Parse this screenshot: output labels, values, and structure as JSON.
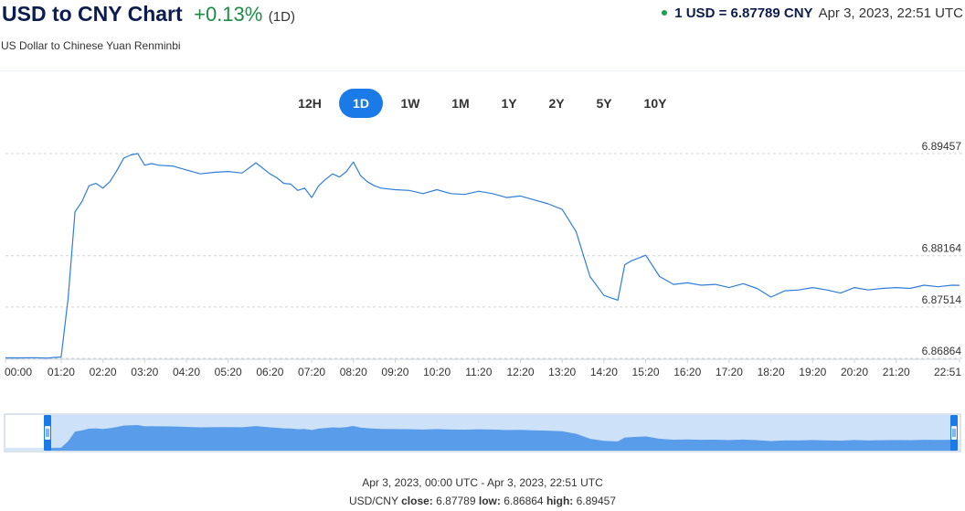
{
  "header": {
    "title": "USD to CNY Chart",
    "change": "+0.13%",
    "period": "(1D)",
    "subtitle": "US Dollar to Chinese Yuan Renminbi",
    "rate_label": "1 USD = 6.87789 CNY",
    "rate_time": "Apr 3, 2023, 22:51 UTC"
  },
  "tabs": [
    {
      "label": "12H",
      "active": false
    },
    {
      "label": "1D",
      "active": true
    },
    {
      "label": "1W",
      "active": false
    },
    {
      "label": "1M",
      "active": false
    },
    {
      "label": "1Y",
      "active": false
    },
    {
      "label": "2Y",
      "active": false
    },
    {
      "label": "5Y",
      "active": false
    },
    {
      "label": "10Y",
      "active": false
    }
  ],
  "colors": {
    "line": "#2f7ed8",
    "accent": "#1a7ae8",
    "positive": "#1a8d45",
    "navigator_fill": "#4f96e8",
    "navigator_mask": "#cde2f9",
    "handle": "#1a7ae8"
  },
  "footer": {
    "range": "Apr 3, 2023, 00:00 UTC - Apr 3, 2023, 22:51 UTC",
    "pair": "USD/CNY",
    "close_label": "close:",
    "close": "6.87789",
    "low_label": "low:",
    "low": "6.86864",
    "high_label": "high:",
    "high": "6.89457"
  },
  "chart_data": {
    "type": "line",
    "title": "",
    "xlabel": "",
    "ylabel": "",
    "series": [
      {
        "x": [
          "00:00",
          "00:20",
          "00:40",
          "01:00",
          "01:10",
          "01:20",
          "01:30",
          "01:40",
          "01:50",
          "02:00",
          "02:10",
          "02:20",
          "02:30",
          "02:40",
          "02:50",
          "03:00",
          "03:10",
          "03:20",
          "03:30",
          "03:40",
          "04:00",
          "04:20",
          "04:40",
          "05:00",
          "05:20",
          "05:40",
          "06:00",
          "06:20",
          "06:30",
          "06:40",
          "06:50",
          "07:00",
          "07:10",
          "07:20",
          "07:30",
          "07:40",
          "07:50",
          "08:00",
          "08:10",
          "08:20",
          "08:30",
          "08:40",
          "08:50",
          "09:00",
          "09:20",
          "09:40",
          "10:00",
          "10:20",
          "10:40",
          "11:00",
          "11:20",
          "11:40",
          "12:00",
          "12:20",
          "12:40",
          "13:00",
          "13:20",
          "13:40",
          "14:00",
          "14:20",
          "14:40",
          "14:50",
          "15:00",
          "15:20",
          "15:40",
          "16:00",
          "16:20",
          "16:40",
          "17:00",
          "17:20",
          "17:40",
          "18:00",
          "18:20",
          "18:40",
          "19:00",
          "19:20",
          "19:40",
          "20:00",
          "20:20",
          "20:40",
          "21:00",
          "21:20",
          "21:40",
          "22:00",
          "22:20",
          "22:40",
          "22:51"
        ],
        "y": [
          6.8687,
          6.8687,
          6.86872,
          6.86868,
          6.86875,
          6.8688,
          6.8762,
          6.8872,
          6.8885,
          6.8905,
          6.8908,
          6.8902,
          6.891,
          6.8924,
          6.894,
          6.8944,
          6.89457,
          6.8931,
          6.8933,
          6.8931,
          6.893,
          6.8925,
          6.892,
          6.8922,
          6.8923,
          6.8921,
          6.8934,
          6.892,
          6.8915,
          6.8908,
          6.8907,
          6.8899,
          6.8902,
          6.889,
          6.8905,
          6.8913,
          6.892,
          6.8916,
          6.8923,
          6.8935,
          6.8918,
          6.891,
          6.8905,
          6.8902,
          6.89,
          6.8899,
          6.8895,
          6.89,
          6.8895,
          6.8894,
          6.8898,
          6.8895,
          6.889,
          6.8892,
          6.8887,
          6.8882,
          6.8875,
          6.8847,
          6.879,
          6.8766,
          6.876,
          6.8805,
          6.881,
          6.8817,
          6.879,
          6.878,
          6.8782,
          6.8779,
          6.878,
          6.8776,
          6.8781,
          6.8775,
          6.8764,
          6.8772,
          6.8773,
          6.8776,
          6.8773,
          6.8769,
          6.8776,
          6.8773,
          6.8775,
          6.8776,
          6.8775,
          6.8779,
          6.8777,
          6.8779,
          6.87789
        ]
      }
    ],
    "x_ticks": [
      "00:00",
      "01:20",
      "02:20",
      "03:20",
      "04:20",
      "05:20",
      "06:20",
      "07:20",
      "08:20",
      "09:20",
      "10:20",
      "11:20",
      "12:20",
      "13:20",
      "14:20",
      "15:20",
      "16:20",
      "17:20",
      "18:20",
      "19:20",
      "20:20",
      "21:20",
      "22:51"
    ],
    "y_ticks": [
      6.89457,
      6.88164,
      6.87514,
      6.86864
    ],
    "ylim": [
      6.86864,
      6.89457
    ],
    "legend": "none",
    "grid": "horizontal dashed"
  }
}
